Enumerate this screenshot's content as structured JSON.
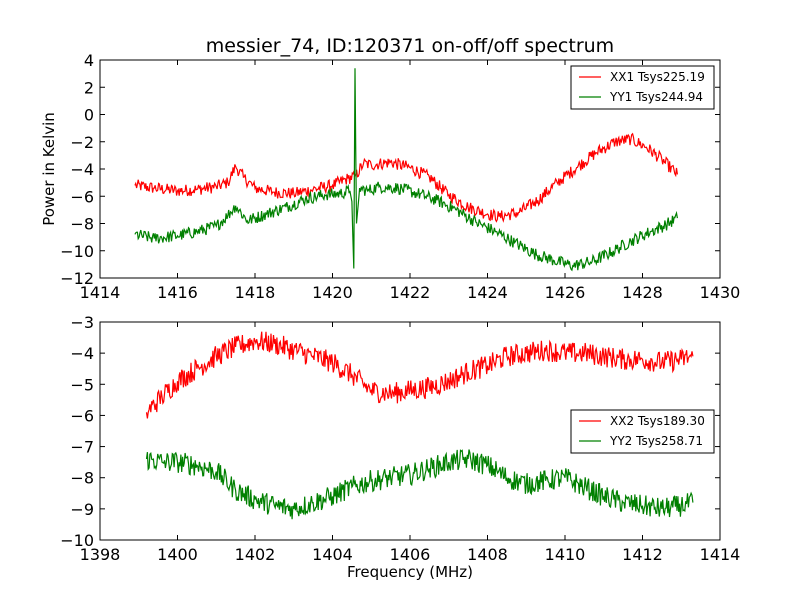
{
  "chart_data": [
    {
      "type": "line",
      "title": "messier_74, ID:120371 on-off/off spectrum",
      "xlabel": "",
      "ylabel": "Power in Kelvin",
      "xlim": [
        1414,
        1430
      ],
      "ylim": [
        -12,
        4
      ],
      "xticks": [
        1414,
        1416,
        1418,
        1420,
        1422,
        1424,
        1426,
        1428,
        1430
      ],
      "yticks": [
        -12,
        -10,
        -8,
        -6,
        -4,
        -2,
        0,
        2,
        4
      ],
      "legend_position": "top-right",
      "grid": false,
      "series": [
        {
          "name": "XX1 Tsys225.19",
          "color": "#ff0000",
          "points": [
            [
              1414.9,
              -5.2
            ],
            [
              1415.4,
              -5.4
            ],
            [
              1416.0,
              -5.6
            ],
            [
              1416.5,
              -5.5
            ],
            [
              1417.0,
              -5.3
            ],
            [
              1417.3,
              -5.0
            ],
            [
              1417.5,
              -3.8
            ],
            [
              1417.7,
              -4.6
            ],
            [
              1418.0,
              -5.4
            ],
            [
              1418.5,
              -5.7
            ],
            [
              1419.0,
              -5.8
            ],
            [
              1419.5,
              -5.5
            ],
            [
              1420.0,
              -5.2
            ],
            [
              1420.4,
              -4.7
            ],
            [
              1420.6,
              -4.5
            ],
            [
              1420.8,
              -3.6
            ],
            [
              1421.0,
              -3.7
            ],
            [
              1421.5,
              -3.5
            ],
            [
              1422.0,
              -3.9
            ],
            [
              1422.5,
              -4.6
            ],
            [
              1423.0,
              -5.9
            ],
            [
              1423.5,
              -6.8
            ],
            [
              1424.0,
              -7.3
            ],
            [
              1424.3,
              -7.5
            ],
            [
              1424.8,
              -7.2
            ],
            [
              1425.3,
              -6.3
            ],
            [
              1425.8,
              -5.0
            ],
            [
              1426.3,
              -3.9
            ],
            [
              1426.8,
              -2.8
            ],
            [
              1427.3,
              -2.0
            ],
            [
              1427.7,
              -1.8
            ],
            [
              1428.1,
              -2.4
            ],
            [
              1428.5,
              -3.3
            ],
            [
              1428.9,
              -4.4
            ]
          ]
        },
        {
          "name": "YY1 Tsys244.94",
          "color": "#008000",
          "points": [
            [
              1414.9,
              -8.8
            ],
            [
              1415.4,
              -9.1
            ],
            [
              1416.0,
              -8.9
            ],
            [
              1416.5,
              -8.6
            ],
            [
              1417.0,
              -8.2
            ],
            [
              1417.3,
              -7.4
            ],
            [
              1417.5,
              -6.7
            ],
            [
              1417.8,
              -7.8
            ],
            [
              1418.3,
              -7.3
            ],
            [
              1418.8,
              -6.8
            ],
            [
              1419.3,
              -6.2
            ],
            [
              1419.8,
              -5.9
            ],
            [
              1420.2,
              -5.8
            ],
            [
              1420.45,
              -5.6
            ],
            [
              1420.5,
              -6.4
            ],
            [
              1420.55,
              -11.3
            ],
            [
              1420.58,
              3.4
            ],
            [
              1420.62,
              -8.0
            ],
            [
              1420.7,
              -5.4
            ],
            [
              1420.9,
              -5.6
            ],
            [
              1421.2,
              -5.3
            ],
            [
              1421.7,
              -5.4
            ],
            [
              1422.2,
              -5.8
            ],
            [
              1422.7,
              -6.3
            ],
            [
              1423.2,
              -7.0
            ],
            [
              1423.7,
              -7.9
            ],
            [
              1424.2,
              -8.6
            ],
            [
              1424.7,
              -9.4
            ],
            [
              1425.2,
              -10.2
            ],
            [
              1425.7,
              -10.7
            ],
            [
              1426.2,
              -11.1
            ],
            [
              1426.7,
              -10.8
            ],
            [
              1427.2,
              -10.1
            ],
            [
              1427.7,
              -9.3
            ],
            [
              1428.2,
              -8.6
            ],
            [
              1428.6,
              -8.1
            ],
            [
              1428.9,
              -7.6
            ]
          ]
        }
      ]
    },
    {
      "type": "line",
      "title": "",
      "xlabel": "Frequency (MHz)",
      "ylabel": "",
      "xlim": [
        1398,
        1414
      ],
      "ylim": [
        -10,
        -3
      ],
      "xticks": [
        1398,
        1400,
        1402,
        1404,
        1406,
        1408,
        1410,
        1412,
        1414
      ],
      "yticks": [
        -10,
        -9,
        -8,
        -7,
        -6,
        -5,
        -4,
        -3
      ],
      "legend_position": "center-right",
      "grid": false,
      "series": [
        {
          "name": "XX2 Tsys189.30",
          "color": "#ff0000",
          "points": [
            [
              1399.2,
              -5.9
            ],
            [
              1399.6,
              -5.4
            ],
            [
              1400.0,
              -4.9
            ],
            [
              1400.5,
              -4.5
            ],
            [
              1401.0,
              -4.1
            ],
            [
              1401.5,
              -3.8
            ],
            [
              1402.0,
              -3.6
            ],
            [
              1402.5,
              -3.7
            ],
            [
              1403.0,
              -3.9
            ],
            [
              1403.5,
              -4.1
            ],
            [
              1404.0,
              -4.3
            ],
            [
              1404.5,
              -4.7
            ],
            [
              1405.0,
              -5.2
            ],
            [
              1405.5,
              -5.3
            ],
            [
              1406.0,
              -5.2
            ],
            [
              1406.5,
              -5.1
            ],
            [
              1407.0,
              -4.9
            ],
            [
              1407.5,
              -4.6
            ],
            [
              1408.0,
              -4.4
            ],
            [
              1408.5,
              -4.1
            ],
            [
              1409.0,
              -4.0
            ],
            [
              1409.5,
              -3.9
            ],
            [
              1410.0,
              -4.0
            ],
            [
              1410.5,
              -4.0
            ],
            [
              1411.0,
              -4.1
            ],
            [
              1411.5,
              -4.2
            ],
            [
              1412.0,
              -4.2
            ],
            [
              1412.5,
              -4.3
            ],
            [
              1413.0,
              -4.2
            ],
            [
              1413.3,
              -4.1
            ]
          ]
        },
        {
          "name": "YY2 Tsys258.71",
          "color": "#008000",
          "points": [
            [
              1399.2,
              -7.4
            ],
            [
              1399.6,
              -7.5
            ],
            [
              1400.0,
              -7.5
            ],
            [
              1400.5,
              -7.6
            ],
            [
              1401.0,
              -7.8
            ],
            [
              1401.5,
              -8.4
            ],
            [
              1402.0,
              -8.7
            ],
            [
              1402.5,
              -8.9
            ],
            [
              1403.0,
              -9.0
            ],
            [
              1403.5,
              -8.8
            ],
            [
              1404.0,
              -8.6
            ],
            [
              1404.5,
              -8.3
            ],
            [
              1405.0,
              -8.1
            ],
            [
              1405.5,
              -8.0
            ],
            [
              1406.0,
              -7.9
            ],
            [
              1406.5,
              -7.7
            ],
            [
              1407.0,
              -7.5
            ],
            [
              1407.5,
              -7.4
            ],
            [
              1408.0,
              -7.6
            ],
            [
              1408.5,
              -8.0
            ],
            [
              1409.0,
              -8.2
            ],
            [
              1409.5,
              -8.1
            ],
            [
              1410.0,
              -8.0
            ],
            [
              1410.5,
              -8.3
            ],
            [
              1411.0,
              -8.6
            ],
            [
              1411.5,
              -8.8
            ],
            [
              1412.0,
              -8.9
            ],
            [
              1412.5,
              -9.0
            ],
            [
              1413.0,
              -8.9
            ],
            [
              1413.3,
              -8.8
            ]
          ]
        }
      ]
    }
  ]
}
